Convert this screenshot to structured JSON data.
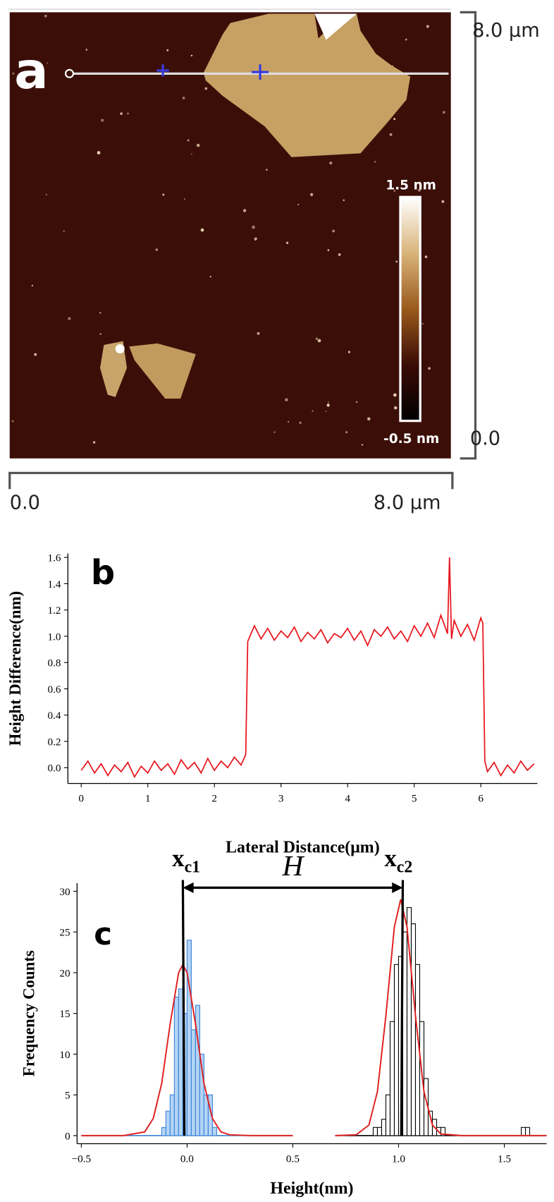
{
  "chart_data": [
    {
      "type": "image",
      "label": "a",
      "y_axis": {
        "top": "8.0 µm",
        "bottom": "0.0"
      },
      "x_axis": {
        "left": "0.0",
        "right": "8.0 µm"
      },
      "colorbar": {
        "max_label": "1.5 nm",
        "min_label": "-0.5 nm"
      }
    },
    {
      "type": "line",
      "label": "b",
      "x_label": "Lateral Distance(μm)",
      "y_label": "Height Difference(nm)",
      "color": "#e8141c",
      "xlim": [
        -0.2,
        6.85
      ],
      "ylim": [
        -0.12,
        1.63
      ],
      "xticks": [
        0,
        1,
        2,
        3,
        4,
        5,
        6
      ],
      "yticks": [
        {
          "value": 0,
          "label": "0.0"
        },
        0.2,
        0.4,
        0.6,
        0.8,
        {
          "value": 1,
          "label": "1.0"
        },
        1.2,
        1.4,
        1.6
      ],
      "x": [
        0,
        0.1,
        0.2,
        0.3,
        0.4,
        0.5,
        0.6,
        0.7,
        0.8,
        0.9,
        1.0,
        1.1,
        1.2,
        1.3,
        1.4,
        1.5,
        1.6,
        1.7,
        1.8,
        1.9,
        2.0,
        2.1,
        2.2,
        2.3,
        2.4,
        2.47,
        2.5,
        2.55,
        2.6,
        2.7,
        2.8,
        2.9,
        3.0,
        3.1,
        3.2,
        3.3,
        3.4,
        3.5,
        3.6,
        3.7,
        3.8,
        3.9,
        4.0,
        4.1,
        4.2,
        4.3,
        4.4,
        4.5,
        4.6,
        4.7,
        4.8,
        4.9,
        5.0,
        5.1,
        5.2,
        5.3,
        5.4,
        5.5,
        5.53,
        5.56,
        5.6,
        5.7,
        5.8,
        5.9,
        6.0,
        6.03,
        6.06,
        6.1,
        6.2,
        6.3,
        6.4,
        6.5,
        6.6,
        6.7,
        6.8
      ],
      "values": [
        -0.02,
        0.05,
        -0.04,
        0.03,
        -0.06,
        0.02,
        -0.03,
        0.04,
        -0.07,
        0.01,
        -0.04,
        0.05,
        -0.02,
        0.03,
        -0.05,
        0.06,
        -0.01,
        0.04,
        -0.04,
        0.07,
        -0.02,
        0.05,
        0.0,
        0.08,
        0.02,
        0.1,
        0.96,
        1.02,
        1.08,
        0.98,
        1.06,
        0.97,
        1.04,
        0.99,
        1.07,
        0.96,
        1.03,
        0.98,
        1.05,
        0.95,
        1.02,
        0.99,
        1.06,
        0.97,
        1.04,
        0.93,
        1.05,
        1.0,
        1.07,
        0.98,
        1.04,
        0.96,
        1.08,
        1.0,
        1.1,
        0.99,
        1.16,
        1.02,
        1.6,
        0.98,
        1.12,
        1.0,
        1.09,
        0.97,
        1.14,
        1.1,
        0.05,
        -0.03,
        0.04,
        -0.06,
        0.02,
        -0.04,
        0.05,
        -0.02,
        0.03
      ]
    },
    {
      "type": "histogram",
      "label": "c",
      "x_label": "Height(nm)",
      "y_label": "Frequency Counts",
      "xlim": [
        -0.52,
        1.7
      ],
      "ylim": [
        -1,
        31
      ],
      "xticks": [
        {
          "value": -0.5,
          "label": "−0.5"
        },
        {
          "value": 0,
          "label": "0.0"
        },
        0.5,
        {
          "value": 1,
          "label": "1.0"
        },
        1.5
      ],
      "yticks": [
        0,
        5,
        10,
        15,
        20,
        25,
        30
      ],
      "series": [
        {
          "color": "#3b82d8",
          "fill": "#b3d4f5",
          "bins": [
            -0.12,
            -0.1,
            -0.08,
            -0.06,
            -0.04,
            -0.02,
            0,
            0.02,
            0.04,
            0.06,
            0.08,
            0.1,
            0.12,
            0.14
          ],
          "values": [
            1,
            3,
            5,
            17,
            18,
            15,
            24,
            13,
            16,
            10,
            5,
            5,
            1
          ]
        },
        {
          "color": "#000000",
          "fill": "#ffffff",
          "bins": [
            0.88,
            0.9,
            0.92,
            0.94,
            0.96,
            0.98,
            1.0,
            1.02,
            1.04,
            1.06,
            1.08,
            1.1,
            1.12,
            1.14,
            1.16,
            1.18,
            1.2,
            1.22
          ],
          "values": [
            1,
            1,
            2,
            5,
            14,
            21,
            22,
            25,
            28,
            26,
            21,
            14,
            7,
            3,
            2,
            1,
            1
          ]
        },
        {
          "color": "#000000",
          "fill": "#ffffff",
          "bins": [
            1.58,
            1.6,
            1.62
          ],
          "values": [
            1,
            1
          ]
        }
      ],
      "fits": [
        {
          "color": "#e02020",
          "baseline_color": "#3b82d8",
          "x": [
            -0.5,
            -0.3,
            -0.2,
            -0.16,
            -0.12,
            -0.08,
            -0.04,
            -0.02,
            0,
            0.04,
            0.08,
            0.12,
            0.16,
            0.2,
            0.3,
            0.5
          ],
          "values": [
            0,
            0,
            0.46,
            2.1,
            6.4,
            13.7,
            20,
            21,
            20,
            13.7,
            6.4,
            2.1,
            0.46,
            0.1,
            0,
            0
          ]
        },
        {
          "color": "#e02020",
          "baseline_color": "#000000",
          "x": [
            0.7,
            0.8,
            0.86,
            0.9,
            0.94,
            0.98,
            1.01,
            1.04,
            1.08,
            1.12,
            1.16,
            1.2,
            1.3,
            1.7
          ],
          "values": [
            0,
            0.1,
            1.3,
            5.4,
            14.7,
            25.6,
            29,
            25.6,
            14.7,
            5.4,
            1.3,
            0.2,
            0,
            0
          ]
        }
      ],
      "markers": [
        -0.02,
        1.02
      ],
      "annotations": {
        "xc1": {
          "text": "x",
          "sub": "c1"
        },
        "xc2": {
          "text": "x",
          "sub": "c2"
        },
        "H": "H"
      }
    }
  ]
}
